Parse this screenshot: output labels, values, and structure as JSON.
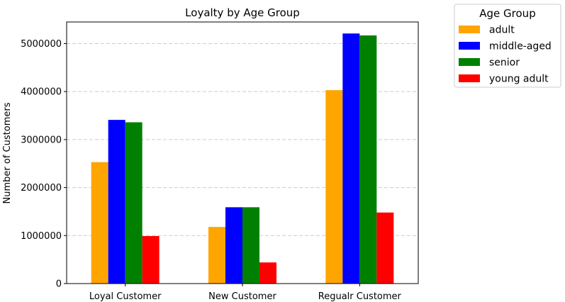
{
  "chart_data": {
    "type": "bar",
    "title": "Loyalty by Age Group",
    "xlabel": "",
    "ylabel": "Number of Customers",
    "categories": [
      "Loyal Customer",
      "New Customer",
      "Regualr Customer"
    ],
    "series": [
      {
        "name": "adult",
        "color": "#ffa500",
        "values": [
          2530000,
          1180000,
          4030000
        ]
      },
      {
        "name": "middle-aged",
        "color": "#0000ff",
        "values": [
          3410000,
          1590000,
          5210000
        ]
      },
      {
        "name": "senior",
        "color": "#008000",
        "values": [
          3360000,
          1590000,
          5170000
        ]
      },
      {
        "name": "young adult",
        "color": "#ff0000",
        "values": [
          990000,
          440000,
          1480000
        ]
      }
    ],
    "ylim": [
      0,
      5450000
    ],
    "yticks": [
      0,
      1000000,
      2000000,
      3000000,
      4000000,
      5000000
    ],
    "ytick_labels": [
      "0",
      "1000000",
      "2000000",
      "3000000",
      "4000000",
      "5000000"
    ],
    "grid": "y-dashed",
    "legend": {
      "title": "Age Group",
      "placement": "outside-top-right"
    }
  }
}
